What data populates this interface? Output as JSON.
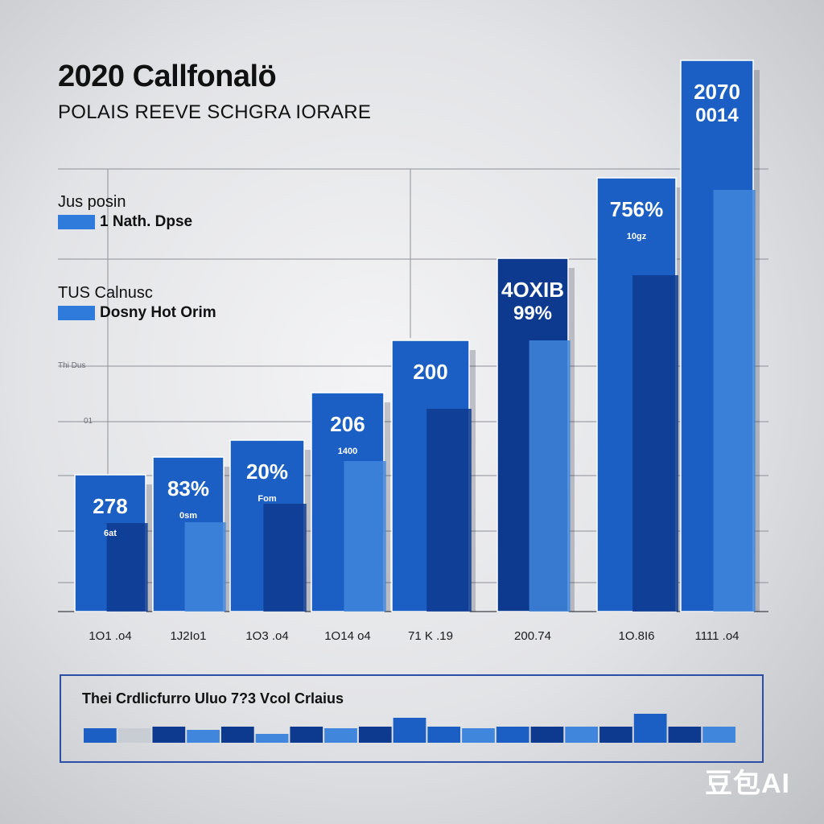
{
  "header": {
    "title": "2020 Callfonalö",
    "subtitle": "POLAIS REEVE SCHGRA IORARE"
  },
  "legend": [
    {
      "heading": "Jus posin",
      "label": "1 Nath. Dpse",
      "color": "#2e7bdc"
    },
    {
      "heading": "TUS Calnusc",
      "label": "Dosny Hot Orim",
      "color": "#2e7bdc"
    }
  ],
  "y_ticks": [
    "Thi Dus",
    "01"
  ],
  "bottom_panel": {
    "title": "Thei Crdlicfurro Uluo 7?3 Vcol Crlaius"
  },
  "watermark": "豆包AI",
  "colors": {
    "dark_blue": "#0d3a8f",
    "mid_blue": "#1c5fc4",
    "light_blue": "#3f86dc",
    "navy": "#0a2b6e"
  },
  "chart_data": {
    "type": "bar",
    "title": "2020 Callfonalö",
    "subtitle": "POLAIS REEVE SCHGRA IORARE",
    "categories": [
      "1O1 .o4",
      "1J2Io1",
      "1O3 .o4",
      "1O14 o4",
      "71 K .19",
      "200.74",
      "1O.8I6",
      "1111 .o4"
    ],
    "series": [
      {
        "values": [
          170,
          192,
          213,
          272,
          337,
          439,
          539,
          685
        ]
      },
      {
        "values": [
          110,
          111,
          134,
          187,
          252,
          337,
          418,
          524
        ]
      }
    ],
    "bar_labels": [
      {
        "main": "278",
        "sub": "6at"
      },
      {
        "main": "83%",
        "sub": "0sm"
      },
      {
        "main": "20%",
        "sub": "Fom"
      },
      {
        "main": "206",
        "sub": "1400"
      },
      {
        "main": "200",
        "sub": ""
      },
      {
        "main": "4OXIB",
        "sub": "99%"
      },
      {
        "main": "756%",
        "sub": "10gz"
      },
      {
        "main": "2070",
        "sub": "0014"
      }
    ],
    "ylim": [
      0,
      700
    ],
    "grid": true,
    "legend_position": "top-left"
  },
  "mini_chart": {
    "values": [
      18,
      0,
      20,
      16,
      20,
      11,
      20,
      18,
      20,
      31,
      20,
      18,
      20,
      20,
      20,
      20,
      36,
      20,
      20
    ],
    "colors": [
      "mid",
      "light-gray",
      "dark",
      "light",
      "dark",
      "light",
      "dark",
      "light",
      "dark",
      "mid",
      "mid",
      "light",
      "mid",
      "dark",
      "light",
      "dark",
      "mid",
      "dark",
      "light"
    ]
  }
}
